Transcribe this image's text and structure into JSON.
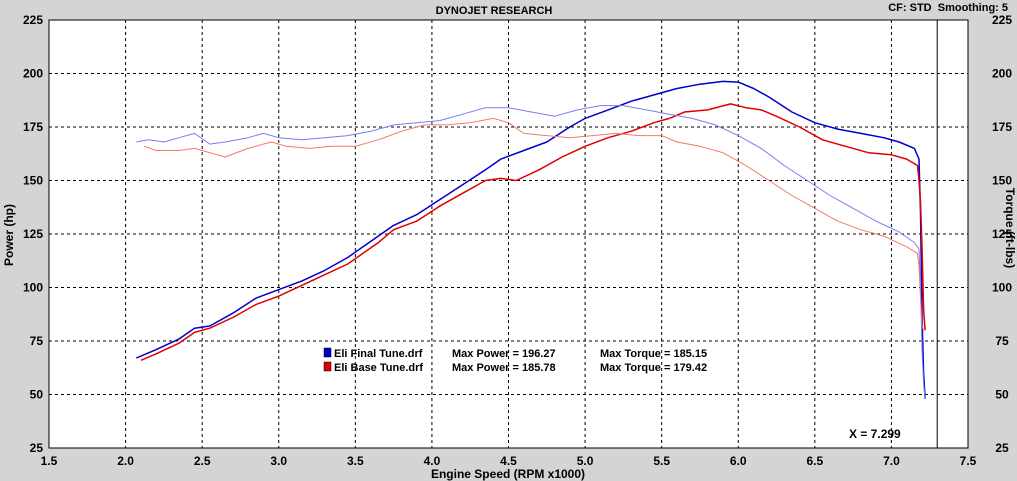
{
  "header": {
    "title": "DYNOJET RESEARCH",
    "settings": "CF: STD  Smoothing: 5"
  },
  "colors": {
    "background": "#d4d4d4",
    "plot_background": "#ffffff",
    "final_tune_power": "#0000cc",
    "final_tune_torque": "#7b7bf0",
    "base_tune_power": "#e00000",
    "base_tune_torque": "#f07a6a"
  },
  "cursor": {
    "label": "X = 7.299",
    "x": 7.299
  },
  "chart_data": {
    "type": "line",
    "xlabel": "Engine Speed (RPM x1000)",
    "ylabel_left": "Power (hp)",
    "ylabel_right": "Torque (ft-lbs)",
    "xlim": [
      1.5,
      7.5
    ],
    "ylim": [
      25,
      225
    ],
    "x_ticks": [
      "1.5",
      "2.0",
      "2.5",
      "3.0",
      "3.5",
      "4.0",
      "4.5",
      "5.0",
      "5.5",
      "6.0",
      "6.5",
      "7.0",
      "7.5"
    ],
    "y_ticks_left": [
      "225",
      "200",
      "175",
      "150",
      "125",
      "100",
      "75",
      "50",
      "25"
    ],
    "y_ticks_right": [
      "225",
      "200",
      "175",
      "150",
      "125",
      "100",
      "75",
      "50",
      "25"
    ],
    "grid": true,
    "legend_position": "center-left",
    "legend": [
      {
        "file": "Eli Final Tune.drf",
        "power_text": "Max Power = 196.27",
        "torque_text": "Max Torque = 185.15",
        "color": "#0000cc"
      },
      {
        "file": "Eli Base Tune.drf",
        "power_text": "Max Power = 185.78",
        "torque_text": "Max Torque = 179.42",
        "color": "#e00000"
      }
    ],
    "series": [
      {
        "run": "Eli Final Tune.drf",
        "measure": "power",
        "color": "#0000cc",
        "width": 1.5,
        "points": [
          [
            2.07,
            67
          ],
          [
            2.2,
            71
          ],
          [
            2.35,
            76
          ],
          [
            2.45,
            81
          ],
          [
            2.55,
            82
          ],
          [
            2.7,
            88
          ],
          [
            2.85,
            95
          ],
          [
            3.0,
            99
          ],
          [
            3.15,
            103
          ],
          [
            3.3,
            108
          ],
          [
            3.45,
            114
          ],
          [
            3.55,
            119
          ],
          [
            3.65,
            124
          ],
          [
            3.75,
            129
          ],
          [
            3.9,
            134
          ],
          [
            4.05,
            141
          ],
          [
            4.2,
            148
          ],
          [
            4.35,
            155
          ],
          [
            4.45,
            160
          ],
          [
            4.6,
            164
          ],
          [
            4.75,
            168
          ],
          [
            4.9,
            175
          ],
          [
            5.0,
            179
          ],
          [
            5.15,
            183
          ],
          [
            5.3,
            187
          ],
          [
            5.45,
            190
          ],
          [
            5.6,
            193
          ],
          [
            5.75,
            195
          ],
          [
            5.9,
            196.3
          ],
          [
            6.0,
            196
          ],
          [
            6.1,
            193
          ],
          [
            6.2,
            189
          ],
          [
            6.35,
            182
          ],
          [
            6.5,
            177
          ],
          [
            6.65,
            174
          ],
          [
            6.8,
            172
          ],
          [
            6.95,
            170
          ],
          [
            7.05,
            168
          ],
          [
            7.15,
            165
          ],
          [
            7.18,
            160
          ],
          [
            7.19,
            135
          ],
          [
            7.2,
            85
          ],
          [
            7.21,
            60
          ],
          [
            7.22,
            48
          ]
        ]
      },
      {
        "run": "Eli Base Tune.drf",
        "measure": "power",
        "color": "#e00000",
        "width": 1.5,
        "points": [
          [
            2.1,
            66
          ],
          [
            2.2,
            69
          ],
          [
            2.35,
            74
          ],
          [
            2.45,
            79
          ],
          [
            2.55,
            81
          ],
          [
            2.7,
            86
          ],
          [
            2.85,
            92
          ],
          [
            3.0,
            96
          ],
          [
            3.15,
            101
          ],
          [
            3.3,
            106
          ],
          [
            3.45,
            111
          ],
          [
            3.55,
            116
          ],
          [
            3.65,
            121
          ],
          [
            3.75,
            127
          ],
          [
            3.9,
            131
          ],
          [
            4.05,
            138
          ],
          [
            4.2,
            144
          ],
          [
            4.35,
            150
          ],
          [
            4.45,
            151
          ],
          [
            4.55,
            150
          ],
          [
            4.7,
            155
          ],
          [
            4.85,
            161
          ],
          [
            5.0,
            166
          ],
          [
            5.15,
            170
          ],
          [
            5.3,
            173
          ],
          [
            5.45,
            177
          ],
          [
            5.55,
            179
          ],
          [
            5.65,
            182
          ],
          [
            5.8,
            183
          ],
          [
            5.95,
            185.8
          ],
          [
            6.05,
            184
          ],
          [
            6.15,
            183
          ],
          [
            6.25,
            180
          ],
          [
            6.4,
            175
          ],
          [
            6.55,
            169
          ],
          [
            6.7,
            166
          ],
          [
            6.85,
            163
          ],
          [
            7.0,
            162
          ],
          [
            7.1,
            160
          ],
          [
            7.17,
            157
          ],
          [
            7.18,
            150
          ],
          [
            7.19,
            140
          ],
          [
            7.2,
            118
          ],
          [
            7.21,
            90
          ],
          [
            7.22,
            80
          ]
        ]
      },
      {
        "run": "Eli Final Tune.drf",
        "measure": "torque",
        "color": "#7b7bf0",
        "width": 1,
        "points": [
          [
            2.07,
            168
          ],
          [
            2.15,
            169
          ],
          [
            2.25,
            168
          ],
          [
            2.35,
            170
          ],
          [
            2.45,
            172
          ],
          [
            2.55,
            167
          ],
          [
            2.65,
            168
          ],
          [
            2.8,
            170
          ],
          [
            2.9,
            172
          ],
          [
            3.0,
            170
          ],
          [
            3.15,
            169
          ],
          [
            3.3,
            170
          ],
          [
            3.45,
            171
          ],
          [
            3.6,
            173
          ],
          [
            3.75,
            176
          ],
          [
            3.9,
            177
          ],
          [
            4.05,
            178
          ],
          [
            4.2,
            181
          ],
          [
            4.35,
            184
          ],
          [
            4.5,
            184
          ],
          [
            4.65,
            182
          ],
          [
            4.8,
            180
          ],
          [
            4.95,
            183
          ],
          [
            5.1,
            185
          ],
          [
            5.25,
            185
          ],
          [
            5.4,
            183
          ],
          [
            5.55,
            181
          ],
          [
            5.7,
            179
          ],
          [
            5.85,
            176
          ],
          [
            6.0,
            171
          ],
          [
            6.15,
            165
          ],
          [
            6.3,
            157
          ],
          [
            6.45,
            150
          ],
          [
            6.6,
            143
          ],
          [
            6.75,
            137
          ],
          [
            6.9,
            131
          ],
          [
            7.05,
            126
          ],
          [
            7.15,
            121
          ],
          [
            7.18,
            118
          ],
          [
            7.19,
            100
          ],
          [
            7.2,
            70
          ],
          [
            7.21,
            55
          ],
          [
            7.22,
            48
          ]
        ]
      },
      {
        "run": "Eli Base Tune.drf",
        "measure": "torque",
        "color": "#f07a6a",
        "width": 1,
        "points": [
          [
            2.12,
            166
          ],
          [
            2.2,
            164
          ],
          [
            2.35,
            164
          ],
          [
            2.45,
            165
          ],
          [
            2.55,
            163
          ],
          [
            2.65,
            161
          ],
          [
            2.8,
            165
          ],
          [
            2.95,
            168
          ],
          [
            3.05,
            166
          ],
          [
            3.2,
            165
          ],
          [
            3.35,
            166
          ],
          [
            3.5,
            166
          ],
          [
            3.65,
            169
          ],
          [
            3.8,
            173
          ],
          [
            3.95,
            176
          ],
          [
            4.1,
            176
          ],
          [
            4.25,
            177
          ],
          [
            4.4,
            179
          ],
          [
            4.5,
            177
          ],
          [
            4.6,
            172
          ],
          [
            4.75,
            171
          ],
          [
            4.9,
            170
          ],
          [
            5.05,
            171
          ],
          [
            5.2,
            172
          ],
          [
            5.35,
            171
          ],
          [
            5.5,
            171
          ],
          [
            5.6,
            168
          ],
          [
            5.75,
            166
          ],
          [
            5.9,
            163
          ],
          [
            6.05,
            157
          ],
          [
            6.2,
            150
          ],
          [
            6.35,
            143
          ],
          [
            6.5,
            137
          ],
          [
            6.65,
            131
          ],
          [
            6.8,
            127
          ],
          [
            6.95,
            124
          ],
          [
            7.1,
            119
          ],
          [
            7.17,
            116
          ],
          [
            7.18,
            110
          ],
          [
            7.19,
            95
          ],
          [
            7.2,
            82
          ],
          [
            7.21,
            80
          ]
        ]
      }
    ]
  }
}
